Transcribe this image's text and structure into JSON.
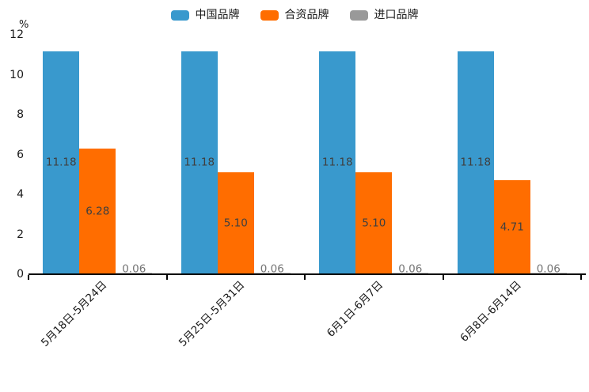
{
  "legend": {
    "items": [
      {
        "label": "中国品牌",
        "color": "#3999CD"
      },
      {
        "label": "合资品牌",
        "color": "#FF6D00"
      },
      {
        "label": "进口品牌",
        "color": "#999999"
      }
    ]
  },
  "chart_data": {
    "type": "bar",
    "title": "",
    "ylabel": "%",
    "xlabel": "",
    "ylim": [
      0,
      12
    ],
    "y_ticks": [
      0,
      2,
      4,
      6,
      8,
      10,
      12
    ],
    "grid": false,
    "legend_position": "top-center",
    "categories": [
      "5月18日-5月24日",
      "5月25日-5月31日",
      "6月1日-6月7日",
      "6月8日-6月14日"
    ],
    "series": [
      {
        "name": "中国品牌",
        "color": "#3999CD",
        "bar_color": "#3999CD",
        "label_color": "#3F3F3F",
        "values": [
          11.18,
          11.18,
          11.18,
          11.18
        ],
        "labels": [
          "11.18",
          "11.18",
          "11.18",
          "11.18"
        ]
      },
      {
        "name": "合资品牌",
        "color": "#FF6D00",
        "bar_color": "#FF6D00",
        "label_color": "#3F3F3F",
        "values": [
          6.28,
          5.1,
          5.1,
          4.71
        ],
        "labels": [
          "6.28",
          "5.10",
          "5.10",
          "4.71"
        ]
      },
      {
        "name": "进口品牌",
        "color": "#999999",
        "bar_color": "#C7C7C7",
        "label_color": "#757575",
        "values": [
          0.06,
          0.06,
          0.06,
          0.06
        ],
        "labels": [
          "0.06",
          "0.06",
          "0.06",
          "0.06"
        ]
      }
    ]
  }
}
